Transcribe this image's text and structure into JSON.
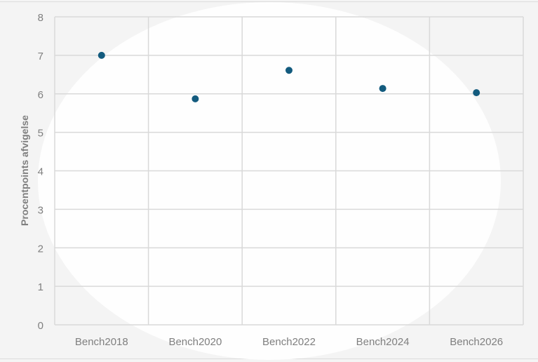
{
  "chart_data": {
    "type": "scatter",
    "title": "",
    "xlabel": "",
    "ylabel": "Procentpoints afvigelse",
    "categories": [
      "Bench2018",
      "Bench2020",
      "Bench2022",
      "Bench2024",
      "Bench2026"
    ],
    "values": [
      7.0,
      5.87,
      6.61,
      6.14,
      6.03
    ],
    "ylim": [
      0,
      8
    ],
    "yticks": [
      "0",
      "1",
      "2",
      "3",
      "4",
      "5",
      "6",
      "7",
      "8"
    ],
    "grid": true,
    "legend": "none",
    "colors": {
      "marker": "#135b7e",
      "grid": "#d9d9d9",
      "text": "#7f7f7f",
      "background": "#f4f4f4"
    }
  }
}
